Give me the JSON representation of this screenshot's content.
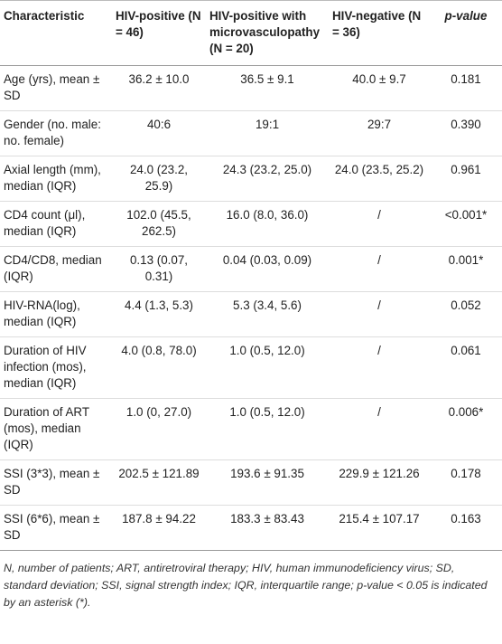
{
  "table": {
    "header": [
      "Characteristic",
      "HIV-positive (N = 46)",
      "HIV-positive with microvasculopathy (N = 20)",
      "HIV-negative (N = 36)",
      "p-value"
    ],
    "rows": [
      [
        "Age (yrs), mean ± SD",
        "36.2 ± 10.0",
        "36.5 ± 9.1",
        "40.0 ± 9.7",
        "0.181"
      ],
      [
        "Gender (no. male: no. female)",
        "40:6",
        "19:1",
        "29:7",
        "0.390"
      ],
      [
        "Axial length (mm), median (IQR)",
        "24.0 (23.2, 25.9)",
        "24.3 (23.2, 25.0)",
        "24.0 (23.5, 25.2)",
        "0.961"
      ],
      [
        "CD4 count (μl), median (IQR)",
        "102.0 (45.5, 262.5)",
        "16.0 (8.0, 36.0)",
        "/",
        "<0.001*"
      ],
      [
        "CD4/CD8, median (IQR)",
        "0.13 (0.07, 0.31)",
        "0.04 (0.03, 0.09)",
        "/",
        "0.001*"
      ],
      [
        "HIV-RNA(log), median (IQR)",
        "4.4 (1.3, 5.3)",
        "5.3 (3.4, 5.6)",
        "/",
        "0.052"
      ],
      [
        "Duration of HIV infection (mos), median (IQR)",
        "4.0 (0.8, 78.0)",
        "1.0 (0.5, 12.0)",
        "/",
        "0.061"
      ],
      [
        "Duration of ART (mos), median (IQR)",
        "1.0 (0, 27.0)",
        "1.0 (0.5, 12.0)",
        "/",
        "0.006*"
      ],
      [
        "SSI (3*3), mean ± SD",
        "202.5 ± 121.89",
        "193.6 ± 91.35",
        "229.9 ± 121.26",
        "0.178"
      ],
      [
        "SSI (6*6), mean ± SD",
        "187.8 ± 94.22",
        "183.3 ± 83.43",
        "215.4 ± 107.17",
        "0.163"
      ]
    ],
    "footnote": "N, number of patients; ART, antiretroviral therapy; HIV, human immunodeficiency virus; SD, standard deviation; SSI, signal strength index; IQR, interquartile range; p-value < 0.05 is indicated by an asterisk (*)."
  }
}
